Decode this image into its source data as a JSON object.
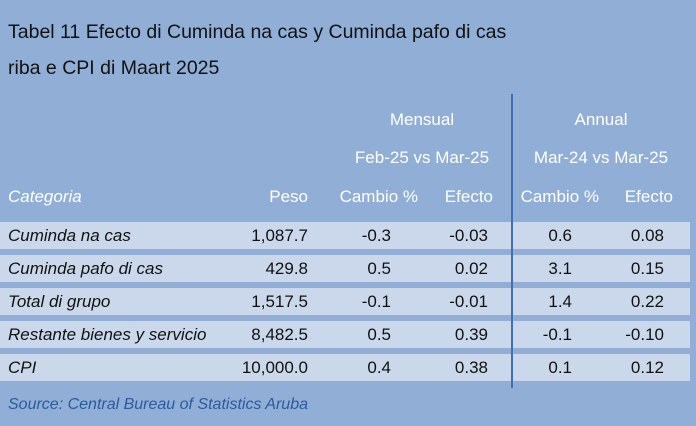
{
  "title": {
    "line1": "Tabel 11 Efecto di Cuminda na cas y Cuminda pafo di cas",
    "line2": "riba e CPI di Maart 2025"
  },
  "groups": {
    "monthly": "Mensual",
    "monthly_period": "Feb-25 vs Mar-25",
    "annual": "Annual",
    "annual_period": "Mar-24 vs Mar-25"
  },
  "columns": [
    "Categoria",
    "Peso",
    "Cambio %",
    "Efecto",
    "Cambio %",
    "Efecto"
  ],
  "rows": [
    [
      "Cuminda na cas",
      "1,087.7",
      "-0.3",
      "-0.03",
      "0.6",
      "0.08"
    ],
    [
      "Cuminda pafo di cas",
      "429.8",
      "0.5",
      "0.02",
      "3.1",
      "0.15"
    ],
    [
      "Total di grupo",
      "1,517.5",
      "-0.1",
      "-0.01",
      "1.4",
      "0.22"
    ],
    [
      "Restante bienes y servicio",
      "8,482.5",
      "0.5",
      "0.39",
      "-0.1",
      "-0.10"
    ],
    [
      "CPI",
      "10,000.0",
      "0.4",
      "0.38",
      "0.1",
      "0.12"
    ]
  ],
  "source": "Source: Central Bureau of Statistics Aruba",
  "colors": {
    "background": "#91aed6",
    "row": "#cbd8ec",
    "divider": "#3f6fb4",
    "source_text": "#2a5a9f"
  }
}
